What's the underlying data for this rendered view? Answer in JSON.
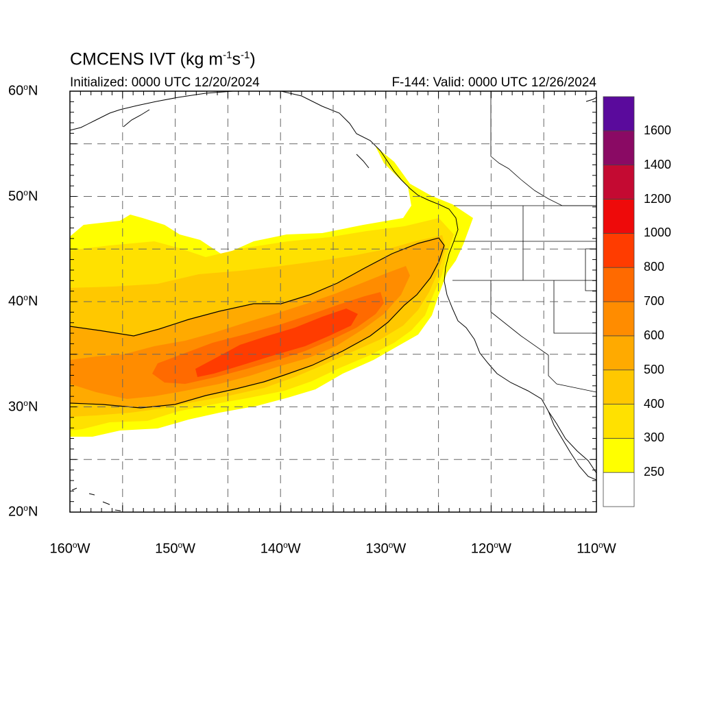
{
  "title": "CMCENS IVT (kg m-1s-1)",
  "title_parts": {
    "main": "CMCENS IVT (kg m",
    "exp1": "-1",
    "mid": "s",
    "exp2": "-1",
    "end": ")"
  },
  "initialized": "Initialized: 0000 UTC 12/20/2024",
  "valid": "F-144: Valid: 0000 UTC 12/26/2024",
  "lat_labels": [
    {
      "text": "60",
      "unit": "o",
      "hemi": "N",
      "lat": 60
    },
    {
      "text": "50",
      "unit": "o",
      "hemi": "N",
      "lat": 50
    },
    {
      "text": "40",
      "unit": "o",
      "hemi": "N",
      "lat": 40
    },
    {
      "text": "30",
      "unit": "o",
      "hemi": "N",
      "lat": 30
    },
    {
      "text": "20",
      "unit": "o",
      "hemi": "N",
      "lat": 20
    }
  ],
  "lon_labels": [
    {
      "text": "160",
      "unit": "o",
      "hemi": "W",
      "lon": -160
    },
    {
      "text": "150",
      "unit": "o",
      "hemi": "W",
      "lon": -150
    },
    {
      "text": "140",
      "unit": "o",
      "hemi": "W",
      "lon": -140
    },
    {
      "text": "130",
      "unit": "o",
      "hemi": "W",
      "lon": -130
    },
    {
      "text": "120",
      "unit": "o",
      "hemi": "W",
      "lon": -120
    },
    {
      "text": "110",
      "unit": "o",
      "hemi": "W",
      "lon": -110
    }
  ],
  "colorbar": {
    "levels": [
      "1600",
      "1400",
      "1200",
      "1000",
      "800",
      "700",
      "600",
      "500",
      "400",
      "300",
      "250"
    ],
    "colors": [
      "#ffffff",
      "#ffff00",
      "#ffe100",
      "#ffc800",
      "#ffaa00",
      "#ff8c00",
      "#ff6a00",
      "#ff3c00",
      "#ee0a0a",
      "#c40a32",
      "#8a0a64",
      "#5a0a9c"
    ]
  },
  "chart_data": {
    "type": "heatmap",
    "field": "IVT",
    "units": "kg m-1 s-1",
    "xlim": [
      -160,
      -110
    ],
    "ylim": [
      20,
      60
    ],
    "contour_levels": [
      250,
      300,
      400,
      500,
      600,
      700,
      800,
      1000,
      1200,
      1400,
      1600
    ],
    "max_value_estimate": 800,
    "core_axis_lonlat": [
      [
        -160,
        33
      ],
      [
        -150,
        33.5
      ],
      [
        -145,
        34
      ],
      [
        -140,
        35.5
      ],
      [
        -135,
        37
      ],
      [
        -130,
        40
      ],
      [
        -126,
        43
      ],
      [
        -124,
        46
      ]
    ]
  }
}
